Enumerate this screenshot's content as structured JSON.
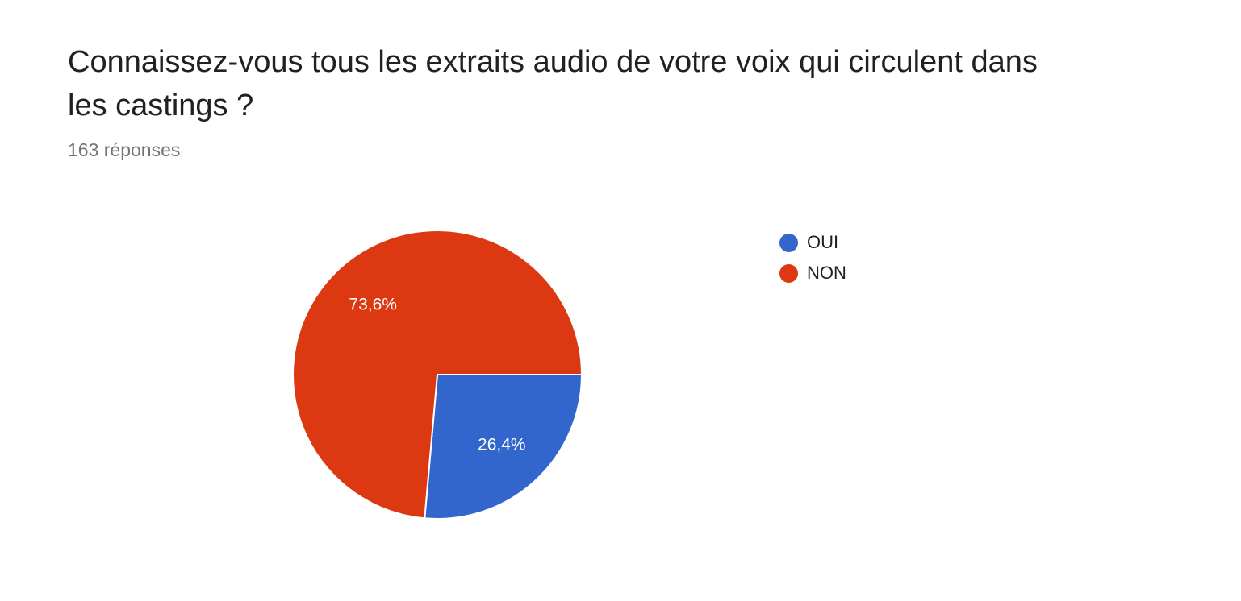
{
  "form": {
    "question": "Connaissez-vous tous les extraits audio de votre voix qui circulent dans les castings ?",
    "response_count": "163 réponses"
  },
  "chart_data": {
    "type": "pie",
    "title": "Connaissez-vous tous les extraits audio de votre voix qui circulent dans les castings ?",
    "legend_position": "right",
    "slices": [
      {
        "name": "OUI",
        "value": 26.4,
        "label": "26,4%",
        "color": "#3366cc"
      },
      {
        "name": "NON",
        "value": 73.6,
        "label": "73,6%",
        "color": "#dc3912"
      }
    ]
  }
}
